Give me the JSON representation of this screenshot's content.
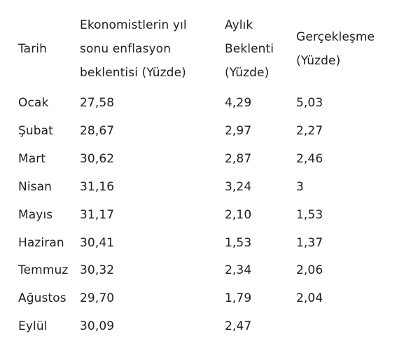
{
  "table": {
    "headers": [
      "Tarih",
      "Ekonomistlerin yıl sonu enflasyon beklentisi (Yüzde)",
      "Aylık Beklenti (Yüzde)",
      "Gerçekleşme (Yüzde)"
    ],
    "rows": [
      [
        "Ocak",
        "27,58",
        "4,29",
        "5,03"
      ],
      [
        "Şubat",
        "28,67",
        "2,97",
        "2,27"
      ],
      [
        "Mart",
        "30,62",
        "2,87",
        "2,46"
      ],
      [
        "Nisan",
        "31,16",
        "3,24",
        "3"
      ],
      [
        "Mayıs",
        "31,17",
        "2,10",
        "1,53"
      ],
      [
        "Haziran",
        "30,41",
        "1,53",
        "1,37"
      ],
      [
        "Temmuz",
        "30,32",
        "2,34",
        "2,06"
      ],
      [
        "Ağustos",
        "29,70",
        "1,79",
        "2,04"
      ],
      [
        "Eylül",
        "30,09",
        "2,47",
        ""
      ]
    ]
  }
}
